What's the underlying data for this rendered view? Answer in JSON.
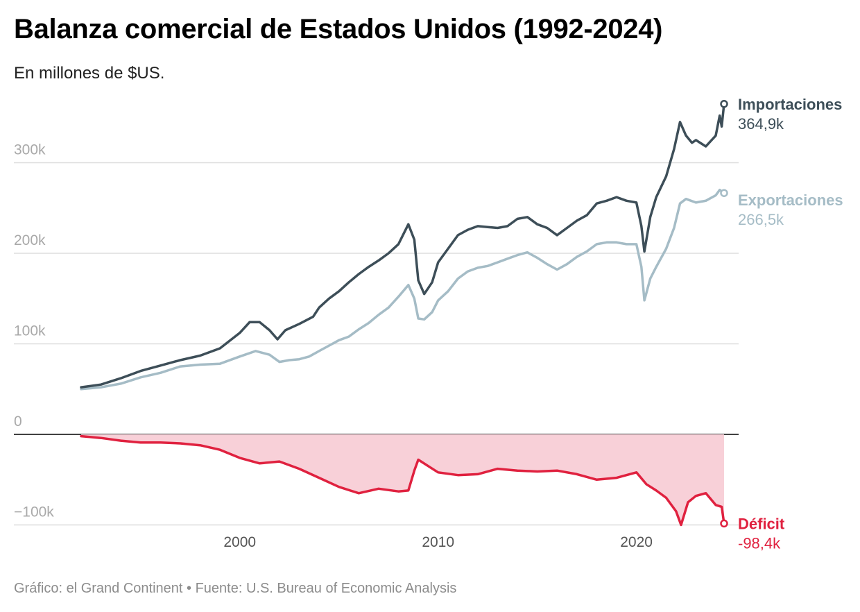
{
  "title": "Balanza comercial de Estados Unidos (1992-2024)",
  "subtitle": "En millones de $US.",
  "footer": "Gráfico: el Grand Continent • Fuente: U.S. Bureau of Economic Analysis",
  "colors": {
    "imports": "#3d4e58",
    "exports": "#a5bcc6",
    "deficit": "#e0213f",
    "deficit_fill": "#f8d0d8"
  },
  "chart_data": {
    "type": "line",
    "title": "Balanza comercial de Estados Unidos (1992-2024)",
    "ylabel": "En millones de $US.",
    "xlim": [
      1992.0,
      2024.42
    ],
    "ylim": [
      -100000,
      370000
    ],
    "y_ticks": [
      {
        "value": 0,
        "label": "0"
      },
      {
        "value": 100000,
        "label": "100k"
      },
      {
        "value": 200000,
        "label": "200k"
      },
      {
        "value": 300000,
        "label": "300k"
      },
      {
        "value": -100000,
        "label": "−100k"
      }
    ],
    "x_ticks": [
      {
        "value": 2000,
        "label": "2000"
      },
      {
        "value": 2010,
        "label": "2010"
      },
      {
        "value": 2020,
        "label": "2020"
      }
    ],
    "grid": true,
    "series": [
      {
        "key": "imports",
        "name": "Importaciones",
        "end_label": "364,9k",
        "points": [
          [
            1992.0,
            52000
          ],
          [
            1993.0,
            55000
          ],
          [
            1994.0,
            62000
          ],
          [
            1995.0,
            70000
          ],
          [
            1996.0,
            76000
          ],
          [
            1997.0,
            82000
          ],
          [
            1998.0,
            87000
          ],
          [
            1999.0,
            95000
          ],
          [
            2000.0,
            112000
          ],
          [
            2000.5,
            124000
          ],
          [
            2001.0,
            124000
          ],
          [
            2001.5,
            115000
          ],
          [
            2001.9,
            105000
          ],
          [
            2002.3,
            115000
          ],
          [
            2003.0,
            122000
          ],
          [
            2003.7,
            130000
          ],
          [
            2004.0,
            140000
          ],
          [
            2004.5,
            150000
          ],
          [
            2005.0,
            158000
          ],
          [
            2005.5,
            168000
          ],
          [
            2006.0,
            177000
          ],
          [
            2006.5,
            185000
          ],
          [
            2007.0,
            192000
          ],
          [
            2007.5,
            200000
          ],
          [
            2008.0,
            210000
          ],
          [
            2008.5,
            232000
          ],
          [
            2008.8,
            215000
          ],
          [
            2009.0,
            170000
          ],
          [
            2009.3,
            155000
          ],
          [
            2009.7,
            168000
          ],
          [
            2010.0,
            190000
          ],
          [
            2010.5,
            205000
          ],
          [
            2011.0,
            220000
          ],
          [
            2011.5,
            226000
          ],
          [
            2012.0,
            230000
          ],
          [
            2012.5,
            229000
          ],
          [
            2013.0,
            228000
          ],
          [
            2013.5,
            230000
          ],
          [
            2014.0,
            238000
          ],
          [
            2014.5,
            240000
          ],
          [
            2015.0,
            232000
          ],
          [
            2015.5,
            228000
          ],
          [
            2016.0,
            220000
          ],
          [
            2016.5,
            228000
          ],
          [
            2017.0,
            236000
          ],
          [
            2017.5,
            242000
          ],
          [
            2018.0,
            255000
          ],
          [
            2018.5,
            258000
          ],
          [
            2019.0,
            262000
          ],
          [
            2019.5,
            258000
          ],
          [
            2020.0,
            256000
          ],
          [
            2020.25,
            230000
          ],
          [
            2020.4,
            202000
          ],
          [
            2020.7,
            240000
          ],
          [
            2021.0,
            262000
          ],
          [
            2021.5,
            285000
          ],
          [
            2021.9,
            315000
          ],
          [
            2022.2,
            345000
          ],
          [
            2022.5,
            330000
          ],
          [
            2022.8,
            322000
          ],
          [
            2023.0,
            325000
          ],
          [
            2023.5,
            318000
          ],
          [
            2024.0,
            330000
          ],
          [
            2024.2,
            352000
          ],
          [
            2024.3,
            340000
          ],
          [
            2024.42,
            364900
          ]
        ]
      },
      {
        "key": "exports",
        "name": "Exportaciones",
        "end_label": "266,5k",
        "points": [
          [
            1992.0,
            50000
          ],
          [
            1993.0,
            52000
          ],
          [
            1994.0,
            56000
          ],
          [
            1995.0,
            63000
          ],
          [
            1996.0,
            68000
          ],
          [
            1997.0,
            75000
          ],
          [
            1998.0,
            77000
          ],
          [
            1999.0,
            78000
          ],
          [
            2000.0,
            86000
          ],
          [
            2000.8,
            92000
          ],
          [
            2001.5,
            88000
          ],
          [
            2002.0,
            80000
          ],
          [
            2002.5,
            82000
          ],
          [
            2003.0,
            83000
          ],
          [
            2003.5,
            86000
          ],
          [
            2004.0,
            92000
          ],
          [
            2004.5,
            98000
          ],
          [
            2005.0,
            104000
          ],
          [
            2005.5,
            108000
          ],
          [
            2006.0,
            116000
          ],
          [
            2006.5,
            123000
          ],
          [
            2007.0,
            132000
          ],
          [
            2007.5,
            140000
          ],
          [
            2008.0,
            152000
          ],
          [
            2008.5,
            165000
          ],
          [
            2008.8,
            150000
          ],
          [
            2009.0,
            128000
          ],
          [
            2009.3,
            127000
          ],
          [
            2009.7,
            135000
          ],
          [
            2010.0,
            148000
          ],
          [
            2010.5,
            158000
          ],
          [
            2011.0,
            172000
          ],
          [
            2011.5,
            180000
          ],
          [
            2012.0,
            184000
          ],
          [
            2012.5,
            186000
          ],
          [
            2013.0,
            190000
          ],
          [
            2013.5,
            194000
          ],
          [
            2014.0,
            198000
          ],
          [
            2014.5,
            201000
          ],
          [
            2015.0,
            195000
          ],
          [
            2015.5,
            188000
          ],
          [
            2016.0,
            182000
          ],
          [
            2016.5,
            188000
          ],
          [
            2017.0,
            196000
          ],
          [
            2017.5,
            202000
          ],
          [
            2018.0,
            210000
          ],
          [
            2018.5,
            212000
          ],
          [
            2019.0,
            212000
          ],
          [
            2019.5,
            210000
          ],
          [
            2020.0,
            210000
          ],
          [
            2020.25,
            185000
          ],
          [
            2020.4,
            148000
          ],
          [
            2020.7,
            172000
          ],
          [
            2021.0,
            185000
          ],
          [
            2021.5,
            205000
          ],
          [
            2021.9,
            228000
          ],
          [
            2022.2,
            255000
          ],
          [
            2022.5,
            260000
          ],
          [
            2023.0,
            256000
          ],
          [
            2023.5,
            258000
          ],
          [
            2024.0,
            264000
          ],
          [
            2024.2,
            270000
          ],
          [
            2024.42,
            266500
          ]
        ]
      },
      {
        "key": "deficit",
        "name": "Déficit",
        "end_label": "-98,4k",
        "points": [
          [
            1992.0,
            -2000
          ],
          [
            1993.0,
            -4000
          ],
          [
            1994.0,
            -7000
          ],
          [
            1995.0,
            -9000
          ],
          [
            1996.0,
            -9000
          ],
          [
            1997.0,
            -10000
          ],
          [
            1998.0,
            -12000
          ],
          [
            1999.0,
            -17000
          ],
          [
            2000.0,
            -26000
          ],
          [
            2001.0,
            -32000
          ],
          [
            2002.0,
            -30000
          ],
          [
            2003.0,
            -38000
          ],
          [
            2004.0,
            -48000
          ],
          [
            2005.0,
            -58000
          ],
          [
            2006.0,
            -65000
          ],
          [
            2007.0,
            -60000
          ],
          [
            2008.0,
            -63000
          ],
          [
            2008.5,
            -62000
          ],
          [
            2008.8,
            -40000
          ],
          [
            2009.0,
            -28000
          ],
          [
            2009.5,
            -35000
          ],
          [
            2010.0,
            -42000
          ],
          [
            2011.0,
            -45000
          ],
          [
            2012.0,
            -44000
          ],
          [
            2013.0,
            -38000
          ],
          [
            2014.0,
            -40000
          ],
          [
            2015.0,
            -41000
          ],
          [
            2016.0,
            -40000
          ],
          [
            2017.0,
            -44000
          ],
          [
            2018.0,
            -50000
          ],
          [
            2019.0,
            -48000
          ],
          [
            2020.0,
            -42000
          ],
          [
            2020.5,
            -55000
          ],
          [
            2021.0,
            -62000
          ],
          [
            2021.5,
            -70000
          ],
          [
            2022.0,
            -85000
          ],
          [
            2022.25,
            -100000
          ],
          [
            2022.6,
            -75000
          ],
          [
            2023.0,
            -68000
          ],
          [
            2023.5,
            -65000
          ],
          [
            2024.0,
            -78000
          ],
          [
            2024.3,
            -80000
          ],
          [
            2024.42,
            -98400
          ]
        ]
      }
    ]
  }
}
